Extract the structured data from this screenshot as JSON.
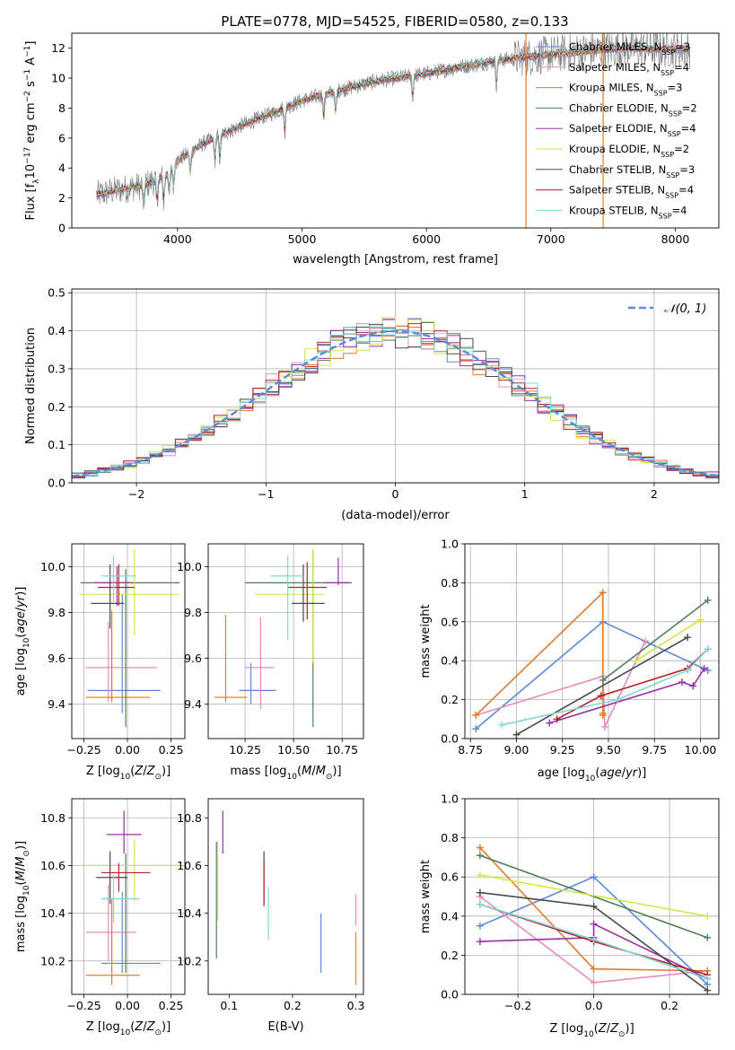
{
  "figure_title": "PLATE=0778, MJD=54525, FIBERID=0580, z=0.133",
  "colors": {
    "Chabrier MILES": "#5b8ad6",
    "Salpeter MILES": "#e88cc0",
    "Kroupa MILES": "#e07b2b",
    "Chabrier ELODIE": "#4f7f55",
    "Salpeter ELODIE": "#9a2fa8",
    "Kroupa ELODIE": "#d2e64a",
    "Chabrier STELIB": "#4a4a4a",
    "Salpeter STELIB": "#b5242a",
    "Kroupa STELIB": "#84d6d6",
    "data": "#7a7a7a",
    "normal": "#5b8ad6"
  },
  "chart_data": [
    {
      "id": "spectrum",
      "type": "line",
      "xlabel": "wavelength [Angstrom, rest frame]",
      "ylabel": "Flux [fλ10⁻¹⁷ erg cm⁻² s⁻¹ A⁻¹]",
      "xlim": [
        3150,
        8350
      ],
      "ylim": [
        0,
        13
      ],
      "xticks": [
        4000,
        5000,
        6000,
        7000,
        8000
      ],
      "yticks": [
        0,
        2,
        4,
        6,
        8,
        10,
        12
      ],
      "legend": "top-right",
      "legend_entries": [
        {
          "label": "Chabrier MILES, N_SSP=3",
          "key": "Chabrier MILES"
        },
        {
          "label": "Salpeter MILES, N_SSP=4",
          "key": "Salpeter MILES"
        },
        {
          "label": "Kroupa MILES, N_SSP=3",
          "key": "Kroupa MILES"
        },
        {
          "label": "Chabrier ELODIE, N_SSP=2",
          "key": "Chabrier ELODIE"
        },
        {
          "label": "Salpeter ELODIE, N_SSP=4",
          "key": "Salpeter ELODIE"
        },
        {
          "label": "Kroupa ELODIE, N_SSP=2",
          "key": "Kroupa ELODIE"
        },
        {
          "label": "Chabrier STELIB, N_SSP=3",
          "key": "Chabrier STELIB"
        },
        {
          "label": "Salpeter STELIB, N_SSP=4",
          "key": "Salpeter STELIB"
        },
        {
          "label": "Kroupa STELIB, N_SSP=4",
          "key": "Kroupa STELIB"
        }
      ],
      "continuum": {
        "x": [
          3350,
          3500,
          3700,
          3900,
          4000,
          4200,
          4500,
          4800,
          5000,
          5300,
          5600,
          6000,
          6300,
          6600,
          7000,
          7300,
          7600,
          8100
        ],
        "y": [
          2.2,
          2.5,
          2.8,
          3.4,
          4.5,
          5.6,
          6.8,
          7.8,
          8.5,
          9.2,
          9.8,
          10.3,
          10.8,
          11.2,
          11.6,
          11.8,
          12.0,
          11.9
        ]
      },
      "cutoffs": [
        {
          "x": 6800,
          "key": "Kroupa MILES"
        },
        {
          "x": 7420,
          "key": "Kroupa MILES"
        }
      ]
    },
    {
      "id": "residuals",
      "type": "line",
      "xlabel": "(data-model)/error",
      "ylabel": "Normed distribution",
      "xlim": [
        -2.5,
        2.5
      ],
      "ylim": [
        0,
        0.51
      ],
      "xticks": [
        -2,
        -1,
        0,
        1,
        2
      ],
      "xtick_labels": [
        "−2",
        "−1",
        "0",
        "1",
        "2"
      ],
      "yticks": [
        0,
        0.1,
        0.2,
        0.3,
        0.4,
        0.5
      ],
      "ytick_labels": [
        "0.0",
        "0.1",
        "0.2",
        "0.3",
        "0.4",
        "0.5"
      ],
      "bin_width": 0.1,
      "legend": "top-right",
      "legend_label": "𝒩(0, 1)"
    },
    {
      "id": "age-vs-Z",
      "type": "scatter",
      "xlabel": "Z [log₁₀(Z/Z⊙)]",
      "ylabel": "age  [log₁₀(age/yr)]",
      "xlim": [
        -0.32,
        0.33
      ],
      "ylim": [
        9.25,
        10.1
      ],
      "xticks": [
        -0.25,
        0.0,
        0.25
      ],
      "xtick_labels": [
        "−0.25",
        "0.00",
        "0.25"
      ],
      "yticks": [
        9.4,
        9.6,
        9.8,
        10.0
      ],
      "ytick_labels": [
        "9.4",
        "9.6",
        "9.8",
        "10.0"
      ],
      "points": [
        {
          "key": "Chabrier MILES",
          "x": -0.03,
          "xerr": [
            0.2,
            0.22
          ],
          "y": 9.46,
          "yerr": [
            0.1,
            0.42
          ]
        },
        {
          "key": "Salpeter MILES",
          "x": -0.11,
          "xerr": [
            0.13,
            0.28
          ],
          "y": 9.56,
          "yerr": [
            0.15,
            0.2
          ]
        },
        {
          "key": "Kroupa MILES",
          "x": -0.09,
          "xerr": [
            0.15,
            0.22
          ],
          "y": 9.43,
          "yerr": [
            0.02,
            0.38
          ]
        },
        {
          "key": "Chabrier ELODIE",
          "x": -0.01,
          "xerr": [
            0.26,
            0.31
          ],
          "y": 9.93,
          "yerr": [
            0.63,
            0.06
          ]
        },
        {
          "key": "Salpeter ELODIE",
          "x": -0.06,
          "xerr": [
            0.13,
            0.1
          ],
          "y": 9.93,
          "yerr": [
            0.1,
            0.07
          ]
        },
        {
          "key": "Kroupa ELODIE",
          "x": 0.04,
          "xerr": [
            0.32,
            0.26
          ],
          "y": 9.88,
          "yerr": [
            0.18,
            0.2
          ]
        },
        {
          "key": "Chabrier STELIB",
          "x": -0.1,
          "xerr": [
            0.11,
            0.08
          ],
          "y": 9.84,
          "yerr": [
            0.11,
            0.17
          ]
        },
        {
          "key": "Salpeter STELIB",
          "x": -0.05,
          "xerr": [
            0.12,
            0.09
          ],
          "y": 9.91,
          "yerr": [
            0.08,
            0.1
          ]
        },
        {
          "key": "Kroupa STELIB",
          "x": -0.08,
          "xerr": [
            0.07,
            0.13
          ],
          "y": 9.96,
          "yerr": [
            0.12,
            0.09
          ]
        }
      ]
    },
    {
      "id": "age-vs-mass",
      "type": "scatter",
      "xlabel": "mass [log₁₀(M/M⊙)]",
      "ylabel": "",
      "xlim": [
        10.06,
        10.86
      ],
      "ylim": [
        9.25,
        10.1
      ],
      "xticks": [
        10.25,
        10.5,
        10.75
      ],
      "xtick_labels": [
        "10.25",
        "10.50",
        "10.75"
      ],
      "yticks": [
        9.4,
        9.6,
        9.8,
        10.0
      ],
      "ytick_labels": [
        "9.4",
        "9.6",
        "9.8",
        "10.0"
      ],
      "points": [
        {
          "key": "Chabrier MILES",
          "x": 10.28,
          "xerr": [
            0.06,
            0.13
          ],
          "y": 9.46,
          "yerr": [
            0.06,
            0.12
          ]
        },
        {
          "key": "Salpeter MILES",
          "x": 10.33,
          "xerr": [
            0.08,
            0.07
          ],
          "y": 9.56,
          "yerr": [
            0.18,
            0.22
          ]
        },
        {
          "key": "Kroupa MILES",
          "x": 10.15,
          "xerr": [
            0.06,
            0.11
          ],
          "y": 9.43,
          "yerr": [
            0.02,
            0.36
          ]
        },
        {
          "key": "Chabrier ELODIE",
          "x": 10.6,
          "xerr": [
            0.35,
            0.2
          ],
          "y": 9.93,
          "yerr": [
            0.63,
            0.14
          ]
        },
        {
          "key": "Salpeter ELODIE",
          "x": 10.73,
          "xerr": [
            0.08,
            0.06
          ],
          "y": 9.93,
          "yerr": [
            0.01,
            0.11
          ]
        },
        {
          "key": "Kroupa ELODIE",
          "x": 10.6,
          "xerr": [
            0.3,
            0.06
          ],
          "y": 9.88,
          "yerr": [
            0.3,
            0.2
          ]
        },
        {
          "key": "Chabrier STELIB",
          "x": 10.55,
          "xerr": [
            0.06,
            0.11
          ],
          "y": 9.84,
          "yerr": [
            0.08,
            0.17
          ]
        },
        {
          "key": "Salpeter STELIB",
          "x": 10.57,
          "xerr": [
            0.1,
            0.1
          ],
          "y": 9.91,
          "yerr": [
            0.14,
            0.11
          ]
        },
        {
          "key": "Kroupa STELIB",
          "x": 10.47,
          "xerr": [
            0.09,
            0.08
          ],
          "y": 9.96,
          "yerr": [
            0.28,
            0.09
          ]
        }
      ]
    },
    {
      "id": "weight-vs-age",
      "type": "line",
      "xlabel": "age  [log₁₀(age/yr)]",
      "ylabel": "mass weight",
      "xlim": [
        8.72,
        10.1
      ],
      "ylim": [
        0,
        1.0
      ],
      "xticks": [
        8.75,
        9.0,
        9.25,
        9.5,
        9.75,
        10.0
      ],
      "xtick_labels": [
        "8.75",
        "9.00",
        "9.25",
        "9.50",
        "9.75",
        "10.00"
      ],
      "yticks": [
        0,
        0.2,
        0.4,
        0.6,
        0.8,
        1.0
      ],
      "ytick_labels": [
        "0.0",
        "0.2",
        "0.4",
        "0.6",
        "0.8",
        "1.0"
      ],
      "series": [
        {
          "key": "Chabrier MILES",
          "x": [
            8.78,
            9.47,
            9.47,
            10.04
          ],
          "y": [
            0.05,
            0.6,
            0.6,
            0.35
          ]
        },
        {
          "key": "Salpeter MILES",
          "x": [
            8.78,
            9.47,
            9.48,
            9.7
          ],
          "y": [
            0.12,
            0.32,
            0.06,
            0.5
          ]
        },
        {
          "key": "Kroupa MILES",
          "x": [
            8.78,
            9.47,
            9.47,
            9.47
          ],
          "y": [
            0.12,
            0.75,
            0.13,
            0.12
          ]
        },
        {
          "key": "Chabrier ELODIE",
          "x": [
            9.47,
            10.04
          ],
          "y": [
            0.3,
            0.71
          ]
        },
        {
          "key": "Salpeter ELODIE",
          "x": [
            9.18,
            9.9,
            9.96,
            10.02
          ],
          "y": [
            0.08,
            0.29,
            0.27,
            0.36
          ]
        },
        {
          "key": "Kroupa ELODIE",
          "x": [
            9.65,
            10.0
          ],
          "y": [
            0.4,
            0.61
          ]
        },
        {
          "key": "Chabrier STELIB",
          "x": [
            9.0,
            9.93
          ],
          "y": [
            0.02,
            0.52
          ]
        },
        {
          "key": "Salpeter STELIB",
          "x": [
            9.22,
            9.46,
            9.93,
            10.04
          ],
          "y": [
            0.1,
            0.22,
            0.36,
            0.46
          ]
        },
        {
          "key": "Kroupa STELIB",
          "x": [
            8.92,
            9.55,
            9.93,
            10.04
          ],
          "y": [
            0.07,
            0.2,
            0.35,
            0.46
          ]
        }
      ]
    },
    {
      "id": "mass-vs-Z",
      "type": "scatter",
      "xlabel": "Z [log₁₀(Z/Z⊙)]",
      "ylabel": "mass [log₁₀(M/M⊙)]",
      "xlim": [
        -0.32,
        0.33
      ],
      "ylim": [
        10.06,
        10.88
      ],
      "xticks": [
        -0.25,
        0.0,
        0.25
      ],
      "xtick_labels": [
        "−0.25",
        "0.00",
        "0.25"
      ],
      "yticks": [
        10.2,
        10.4,
        10.6,
        10.8
      ],
      "ytick_labels": [
        "10.2",
        "10.4",
        "10.6",
        "10.8"
      ],
      "points": [
        {
          "key": "Chabrier MILES",
          "x": -0.03,
          "xerr": [
            0.12,
            0.22
          ],
          "y": 10.19,
          "yerr": [
            0.04,
            0.3
          ]
        },
        {
          "key": "Salpeter MILES",
          "x": -0.11,
          "xerr": [
            0.13,
            0.16
          ],
          "y": 10.32,
          "yerr": [
            0.12,
            0.2
          ]
        },
        {
          "key": "Kroupa MILES",
          "x": -0.09,
          "xerr": [
            0.15,
            0.16
          ],
          "y": 10.14,
          "yerr": [
            0.04,
            0.32
          ]
        },
        {
          "key": "Chabrier ELODIE",
          "x": -0.01,
          "xerr": [
            0.26,
            0.31
          ],
          "y": 10.6,
          "yerr": [
            0.45,
            0.05
          ]
        },
        {
          "key": "Salpeter ELODIE",
          "x": -0.02,
          "xerr": [
            0.1,
            0.1
          ],
          "y": 10.73,
          "yerr": [
            0.08,
            0.1
          ]
        },
        {
          "key": "Kroupa ELODIE",
          "x": 0.04,
          "xerr": [
            0.32,
            0.26
          ],
          "y": 10.6,
          "yerr": [
            0.15,
            0.11
          ]
        },
        {
          "key": "Chabrier STELIB",
          "x": -0.1,
          "xerr": [
            0.08,
            0.1
          ],
          "y": 10.55,
          "yerr": [
            0.11,
            0.11
          ]
        },
        {
          "key": "Salpeter STELIB",
          "x": -0.05,
          "xerr": [
            0.1,
            0.18
          ],
          "y": 10.57,
          "yerr": [
            0.08,
            0.04
          ]
        },
        {
          "key": "Kroupa STELIB",
          "x": -0.08,
          "xerr": [
            0.07,
            0.15
          ],
          "y": 10.46,
          "yerr": [
            0.1,
            0.1
          ]
        }
      ]
    },
    {
      "id": "mass-vs-ebv",
      "type": "scatter",
      "xlabel": "E(B-V)",
      "ylabel": "",
      "xlim": [
        0.067,
        0.312
      ],
      "ylim": [
        10.06,
        10.88
      ],
      "xticks": [
        0.1,
        0.2,
        0.3
      ],
      "xtick_labels": [
        "0.1",
        "0.2",
        "0.3"
      ],
      "yticks": [
        10.2,
        10.4,
        10.6,
        10.8
      ],
      "ytick_labels": [
        "10.2",
        "10.4",
        "10.6",
        "10.8"
      ],
      "points": [
        {
          "key": "Chabrier MILES",
          "x": 0.245,
          "y": 10.28,
          "yerr": [
            0.13,
            0.12
          ]
        },
        {
          "key": "Salpeter MILES",
          "x": 0.3,
          "y": 10.38,
          "yerr": [
            0.03,
            0.1
          ]
        },
        {
          "key": "Kroupa MILES",
          "x": 0.3,
          "y": 10.2,
          "yerr": [
            0.1,
            0.12
          ]
        },
        {
          "key": "Chabrier ELODIE",
          "x": 0.08,
          "y": 10.4,
          "yerr": [
            0.19,
            0.3
          ]
        },
        {
          "key": "Salpeter ELODIE",
          "x": 0.09,
          "y": 10.74,
          "yerr": [
            0.09,
            0.09
          ]
        },
        {
          "key": "Kroupa ELODIE",
          "x": 0.082,
          "y": 10.55,
          "yerr": [
            0.18,
            0.15
          ]
        },
        {
          "key": "Chabrier STELIB",
          "x": 0.155,
          "y": 10.55,
          "yerr": [
            0.11,
            0.11
          ]
        },
        {
          "key": "Salpeter STELIB",
          "x": 0.155,
          "y": 10.5,
          "yerr": [
            0.07,
            0.12
          ]
        },
        {
          "key": "Kroupa STELIB",
          "x": 0.162,
          "y": 10.4,
          "yerr": [
            0.11,
            0.11
          ]
        }
      ]
    },
    {
      "id": "weight-vs-Z",
      "type": "line",
      "xlabel": "Z [log₁₀(Z/Z⊙)]",
      "ylabel": "mass weight",
      "xlim": [
        -0.34,
        0.33
      ],
      "ylim": [
        0,
        1.0
      ],
      "xticks": [
        -0.2,
        0.0,
        0.2
      ],
      "xtick_labels": [
        "−0.2",
        "0.0",
        "0.2"
      ],
      "yticks": [
        0,
        0.2,
        0.4,
        0.6,
        0.8,
        1.0
      ],
      "ytick_labels": [
        "0.0",
        "0.2",
        "0.4",
        "0.6",
        "0.8",
        "1.0"
      ],
      "series": [
        {
          "key": "Chabrier MILES",
          "x": [
            -0.3,
            0.0,
            0.3
          ],
          "y": [
            0.35,
            0.6,
            0.05
          ]
        },
        {
          "key": "Salpeter MILES",
          "x": [
            -0.3,
            0.0,
            0.3
          ],
          "y": [
            0.5,
            0.06,
            0.12
          ]
        },
        {
          "key": "Kroupa MILES",
          "x": [
            -0.3,
            0.0,
            0.3
          ],
          "y": [
            0.75,
            0.13,
            0.12
          ]
        },
        {
          "key": "Chabrier ELODIE",
          "x": [
            -0.3,
            0.3
          ],
          "y": [
            0.71,
            0.29
          ]
        },
        {
          "key": "Salpeter ELODIE",
          "x": [
            -0.3,
            0.0,
            0.0,
            0.3
          ],
          "y": [
            0.27,
            0.29,
            0.36,
            0.08
          ]
        },
        {
          "key": "Kroupa ELODIE",
          "x": [
            -0.3,
            0.3
          ],
          "y": [
            0.61,
            0.4
          ]
        },
        {
          "key": "Chabrier STELIB",
          "x": [
            -0.3,
            0.0,
            0.3
          ],
          "y": [
            0.52,
            0.45,
            0.02
          ]
        },
        {
          "key": "Salpeter STELIB",
          "x": [
            -0.3,
            0.0,
            0.3
          ],
          "y": [
            0.46,
            0.27,
            0.1
          ]
        },
        {
          "key": "Kroupa STELIB",
          "x": [
            -0.3,
            0.0,
            0.3
          ],
          "y": [
            0.46,
            0.28,
            0.08
          ]
        }
      ]
    }
  ]
}
